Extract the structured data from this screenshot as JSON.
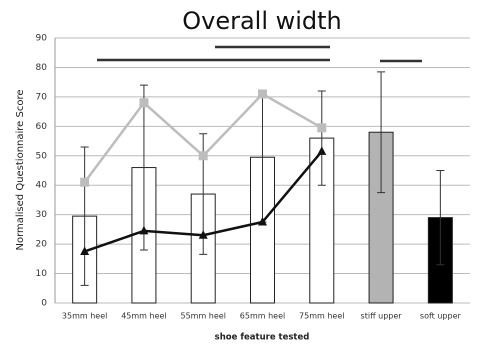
{
  "chart_data": {
    "type": "bar",
    "title": "Overall width",
    "y_label": "Normalised Questionnaire Score",
    "x_label": "shoe feature tested",
    "categories": [
      "35mm heel",
      "45mm heel",
      "55mm heel",
      "65mm heel",
      "75mm heel",
      "stiff upper",
      "soft upper"
    ],
    "ylim": [
      0,
      90
    ],
    "yticks": [
      0,
      10,
      20,
      30,
      40,
      50,
      60,
      70,
      80,
      90
    ],
    "grid": true,
    "series": [
      {
        "type": "bar",
        "values": [
          29.5,
          46,
          37,
          49.5,
          56,
          58,
          29
        ],
        "errors": [
          23.5,
          28,
          20.5,
          22,
          16,
          20.5,
          16
        ],
        "colors": [
          "#ffffff",
          "#ffffff",
          "#ffffff",
          "#ffffff",
          "#ffffff",
          "#b3b3b3",
          "#000000"
        ]
      },
      {
        "type": "line",
        "color": "#bdbdbd",
        "marker": "square",
        "values": [
          41,
          68,
          50,
          71,
          59.5,
          null,
          null
        ]
      },
      {
        "type": "line",
        "color": "#111111",
        "marker": "triangle",
        "values": [
          17.5,
          24.5,
          23,
          27.5,
          51.5,
          null,
          null
        ]
      }
    ]
  }
}
